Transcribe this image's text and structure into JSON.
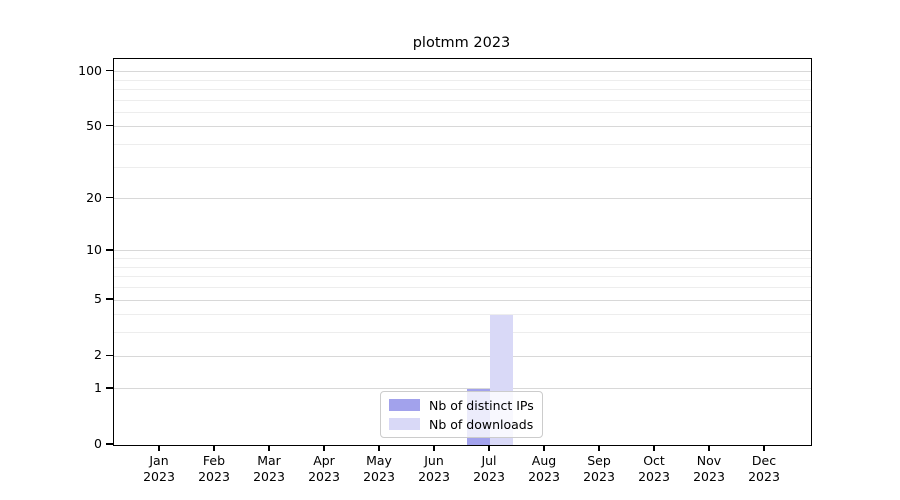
{
  "chart_data": {
    "type": "bar",
    "title": "plotmm 2023",
    "categories": [
      "Jan",
      "Feb",
      "Mar",
      "Apr",
      "May",
      "Jun",
      "Jul",
      "Aug",
      "Sep",
      "Oct",
      "Nov",
      "Dec"
    ],
    "x_year": "2023",
    "series": [
      {
        "name": "Nb of distinct IPs",
        "color": "#a2a2ec",
        "values": [
          0,
          0,
          0,
          0,
          0,
          0,
          1,
          0,
          0,
          0,
          0,
          0
        ]
      },
      {
        "name": "Nb of downloads",
        "color": "#d9d9f7",
        "values": [
          0,
          0,
          0,
          0,
          0,
          0,
          4,
          0,
          0,
          0,
          0,
          0
        ]
      }
    ],
    "y_scale": "log1p",
    "y_ticks": [
      0,
      1,
      2,
      5,
      10,
      20,
      50,
      100
    ],
    "y_minor_ticks": [
      3,
      4,
      6,
      7,
      8,
      9,
      30,
      40,
      60,
      70,
      80,
      90
    ],
    "ylim": [
      0,
      117
    ],
    "xlabel": "",
    "ylabel": "",
    "grid": "horizontal",
    "legend_position": "lower center",
    "colors": {
      "major_gridline": "#d8d8d8",
      "minor_gridline": "#ededed",
      "frame": "#000000",
      "text": "#000000"
    }
  }
}
